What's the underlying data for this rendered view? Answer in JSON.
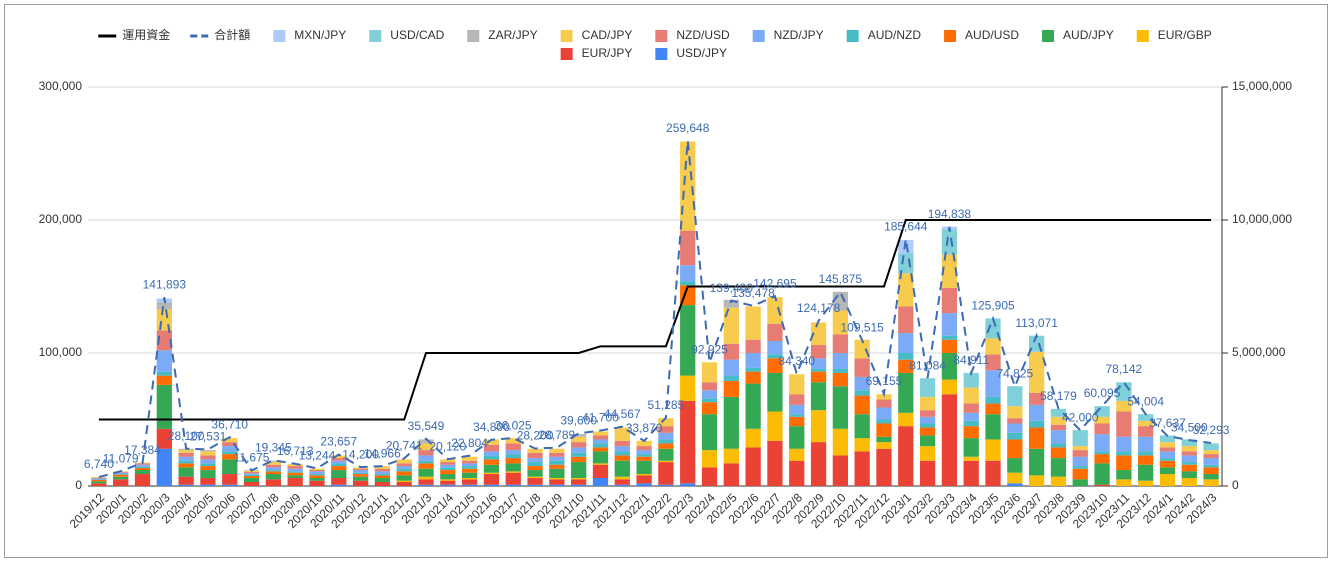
{
  "chart_data": {
    "type": "bar",
    "stacked": true,
    "grid": true,
    "legend": "top",
    "categories": [
      "2019/12",
      "2020/1",
      "2020/2",
      "2020/3",
      "2020/4",
      "2020/5",
      "2020/6",
      "2020/7",
      "2020/8",
      "2020/9",
      "2020/10",
      "2020/11",
      "2020/12",
      "2021/1",
      "2021/2",
      "2021/3",
      "2021/4",
      "2021/5",
      "2021/6",
      "2021/7",
      "2021/8",
      "2021/9",
      "2021/10",
      "2021/11",
      "2021/12",
      "2022/1",
      "2022/2",
      "2022/3",
      "2022/4",
      "2022/5",
      "2022/6",
      "2022/7",
      "2022/8",
      "2022/9",
      "2022/10",
      "2022/11",
      "2022/12",
      "2023/1",
      "2023/2",
      "2023/3",
      "2023/4",
      "2023/5",
      "2023/6",
      "2023/7",
      "2023/8",
      "2023/9",
      "2023/10",
      "2023/11",
      "2023/12",
      "2024/1",
      "2024/2",
      "2024/3"
    ],
    "ylim": [
      0,
      300000
    ],
    "yticks": [
      0,
      {
        "value": 100000,
        "label": "100,000"
      },
      {
        "value": 200000,
        "label": "200,000"
      },
      {
        "value": 300000,
        "label": "300,000"
      }
    ],
    "y2lim": [
      0,
      15000000
    ],
    "y2ticks": [
      0,
      {
        "value": 5000000,
        "label": "5,000,000"
      },
      {
        "value": 10000000,
        "label": "10,000,000"
      },
      {
        "value": 15000000,
        "label": "15,000,000"
      }
    ],
    "series": [
      {
        "name": "運用資金",
        "type": "line",
        "axis": "y2",
        "color": "#000000",
        "values": [
          2500000,
          2500000,
          2500000,
          2500000,
          2500000,
          2500000,
          2500000,
          2500000,
          2500000,
          2500000,
          2500000,
          2500000,
          2500000,
          2500000,
          2500000,
          5000000,
          5000000,
          5000000,
          5000000,
          5000000,
          5000000,
          5000000,
          5000000,
          5250000,
          5250000,
          5250000,
          5250000,
          7500000,
          7500000,
          7500000,
          7500000,
          7500000,
          7500000,
          7500000,
          7500000,
          7500000,
          7500000,
          10000000,
          10000000,
          10000000,
          10000000,
          10000000,
          10000000,
          10000000,
          10000000,
          10000000,
          10000000,
          10000000,
          10000000,
          10000000,
          10000000,
          10000000
        ]
      },
      {
        "name": "合計額",
        "type": "line",
        "dashed": true,
        "color": "#3d6bb3",
        "values": [
          6740,
          11079,
          17384,
          141893,
          28100,
          27531,
          36710,
          11675,
          19345,
          16713,
          13244,
          23657,
          14200,
          14966,
          20741,
          35549,
          20120,
          22804,
          34800,
          36025,
          28200,
          28789,
          39600,
          41700,
          44567,
          33870,
          51285,
          259648,
          92925,
          139400,
          135478,
          142695,
          84340,
          124178,
          145875,
          109515,
          69155,
          185644,
          81084,
          194838,
          84911,
          125905,
          74825,
          113071,
          58179,
          42000,
          60095,
          78142,
          54004,
          37637,
          34500,
          32293
        ],
        "value_labels": [
          "6,740",
          "11,079",
          "17,384",
          "141,893",
          "28,100",
          "27,531",
          "36,710",
          "11,675",
          "19,345",
          "16,713",
          "13,244",
          "23,657",
          "14,200",
          "14,966",
          "20,741",
          "35,549",
          "20,120",
          "22,804",
          "34,800",
          "36,025",
          "28,200",
          "28,789",
          "39,600",
          "41,700",
          "44,567",
          "33,870",
          "51,285",
          "259,648",
          "92,925",
          "139,400",
          "135,478",
          "142,695",
          "84,340",
          "124,178",
          "145,875",
          "109,515",
          "69,155",
          "185,644",
          "81,084",
          "194,838",
          "84,911",
          "125,905",
          "74,825",
          "113,071",
          "58,179",
          "42,000",
          "60,095",
          "78,142",
          "54,004",
          "37,637",
          "34,500",
          "32,293"
        ]
      },
      {
        "name": "MXN/JPY",
        "color": "#aecbfa",
        "values": [
          0,
          0,
          0,
          3000,
          0,
          0,
          0,
          0,
          0,
          0,
          0,
          0,
          0,
          0,
          0,
          0,
          0,
          0,
          0,
          0,
          0,
          0,
          0,
          0,
          0,
          0,
          0,
          0,
          0,
          0,
          0,
          0,
          0,
          0,
          0,
          0,
          0,
          10000,
          0,
          2000,
          0,
          0,
          0,
          0,
          0,
          0,
          0,
          0,
          0,
          0,
          0,
          0
        ]
      },
      {
        "name": "USD/CAD",
        "color": "#7fd0d8",
        "values": [
          0,
          0,
          0,
          0,
          0,
          0,
          0,
          0,
          0,
          0,
          0,
          0,
          0,
          0,
          0,
          0,
          0,
          0,
          0,
          0,
          0,
          0,
          0,
          0,
          0,
          0,
          0,
          0,
          0,
          0,
          0,
          0,
          0,
          0,
          0,
          0,
          0,
          15000,
          14000,
          19000,
          11000,
          15000,
          15000,
          12000,
          6000,
          12000,
          8000,
          14000,
          5000,
          5000,
          5000,
          5000
        ]
      },
      {
        "name": "ZAR/JPY",
        "color": "#b7b7b7",
        "values": [
          0,
          0,
          0,
          5000,
          1000,
          1000,
          0,
          500,
          1000,
          0,
          0,
          0,
          0,
          0,
          0,
          3000,
          0,
          0,
          0,
          0,
          0,
          0,
          2000,
          0,
          0,
          0,
          0,
          0,
          0,
          6000,
          0,
          0,
          0,
          0,
          14000,
          0,
          0,
          0,
          0,
          0,
          0,
          0,
          0,
          0,
          0,
          0,
          0,
          0,
          0,
          0,
          0,
          0
        ]
      },
      {
        "name": "CAD/JPY",
        "color": "#f7cb4d",
        "values": [
          540,
          500,
          500,
          16000,
          2000,
          3000,
          3000,
          1000,
          2000,
          1500,
          1000,
          2000,
          1000,
          2000,
          3000,
          5000,
          2000,
          3000,
          4000,
          4000,
          3000,
          3000,
          4000,
          3000,
          10000,
          4000,
          6000,
          67000,
          15000,
          27000,
          25000,
          20000,
          15000,
          17000,
          18000,
          14000,
          4000,
          25000,
          10000,
          25000,
          12000,
          12000,
          9000,
          31000,
          6000,
          3000,
          5000,
          8000,
          4000,
          4000,
          4000,
          3000
        ]
      },
      {
        "name": "NZD/USD",
        "color": "#e67c73",
        "values": [
          500,
          500,
          1000,
          15000,
          3000,
          3000,
          3000,
          1000,
          2000,
          2000,
          1000,
          2000,
          1000,
          2000,
          2000,
          4000,
          2000,
          2000,
          5000,
          5000,
          4000,
          3000,
          4000,
          3000,
          4000,
          3000,
          5000,
          26000,
          6000,
          12000,
          10000,
          13000,
          8000,
          10000,
          14000,
          14000,
          6000,
          20000,
          5000,
          19000,
          7000,
          12000,
          4000,
          9000,
          4000,
          5000,
          8000,
          19000,
          8000,
          3000,
          3000,
          3000
        ]
      },
      {
        "name": "NZD/JPY",
        "color": "#7baaf7",
        "values": [
          700,
          1000,
          1500,
          16000,
          3000,
          3000,
          4000,
          1000,
          2000,
          2000,
          2000,
          2000,
          2000,
          2000,
          2000,
          4000,
          2000,
          2000,
          3000,
          3000,
          3000,
          3000,
          4000,
          3000,
          4000,
          3000,
          5000,
          12000,
          6000,
          12000,
          11000,
          10000,
          7000,
          8000,
          12000,
          10000,
          9000,
          15000,
          5000,
          17000,
          6000,
          20000,
          7000,
          12000,
          10000,
          7000,
          13000,
          11000,
          11000,
          5000,
          5000,
          5000
        ]
      },
      {
        "name": "AUD/NZD",
        "color": "#46bdc6",
        "values": [
          500,
          500,
          1000,
          3000,
          2000,
          2000,
          2000,
          1000,
          1000,
          1000,
          1000,
          2000,
          1000,
          1000,
          2000,
          2000,
          2000,
          2000,
          3000,
          3000,
          3000,
          3000,
          3000,
          3000,
          3000,
          2000,
          3000,
          3000,
          3000,
          4000,
          3000,
          3000,
          2000,
          2000,
          3000,
          4000,
          3000,
          5000,
          3000,
          3000,
          4000,
          5000,
          5000,
          5000,
          3000,
          2000,
          2000,
          3000,
          3000,
          2000,
          2000,
          2000
        ]
      },
      {
        "name": "AUD/USD",
        "color": "#ff6d01",
        "values": [
          1000,
          1500,
          1500,
          7000,
          3000,
          3000,
          4000,
          1500,
          2000,
          2000,
          2000,
          3000,
          2000,
          2000,
          3000,
          4000,
          3000,
          3000,
          4000,
          4000,
          3000,
          3000,
          4000,
          3000,
          4000,
          3000,
          4000,
          15000,
          9000,
          12000,
          9000,
          11000,
          7000,
          8000,
          10000,
          14000,
          10000,
          10000,
          6000,
          10000,
          9000,
          8000,
          14000,
          16000,
          8000,
          8000,
          7000,
          11000,
          7000,
          5000,
          5000,
          5000
        ]
      },
      {
        "name": "AUD/JPY",
        "color": "#34a853",
        "values": [
          1500,
          2000,
          3000,
          33000,
          7000,
          6000,
          11000,
          3000,
          4000,
          2000,
          2000,
          6000,
          3000,
          3000,
          4000,
          6000,
          4000,
          4000,
          6000,
          6000,
          5000,
          7000,
          12000,
          9000,
          12000,
          10000,
          9000,
          53000,
          27000,
          39000,
          34000,
          29000,
          17000,
          21000,
          32000,
          18000,
          4000,
          30000,
          8000,
          20000,
          14000,
          19000,
          11000,
          20000,
          14000,
          5000,
          16000,
          7000,
          12000,
          5000,
          5000,
          4000
        ]
      },
      {
        "name": "EUR/GBP",
        "color": "#fbbc04",
        "values": [
          0,
          0,
          0,
          0,
          0,
          0,
          0,
          0,
          0,
          0,
          0,
          0,
          0,
          0,
          1000,
          2000,
          1000,
          1000,
          1000,
          1000,
          1000,
          1000,
          1000,
          1000,
          2000,
          1000,
          1000,
          19000,
          13000,
          11000,
          14000,
          22000,
          9000,
          24000,
          20000,
          10000,
          5000,
          10000,
          11000,
          11000,
          3000,
          16000,
          8000,
          8000,
          7000,
          0,
          0,
          5000,
          4000,
          9000,
          6000,
          5000
        ]
      },
      {
        "name": "EUR/JPY",
        "color": "#ea4335",
        "values": [
          2000,
          5000,
          9000,
          15000,
          6000,
          5000,
          8000,
          3000,
          5000,
          6000,
          4000,
          5000,
          4000,
          3000,
          3000,
          4000,
          3000,
          4000,
          8000,
          9000,
          5000,
          4000,
          4000,
          10000,
          4000,
          6000,
          17000,
          62000,
          14000,
          17000,
          29000,
          34000,
          19000,
          33000,
          23000,
          26000,
          28000,
          45000,
          19000,
          69000,
          19000,
          19000,
          0,
          0,
          0,
          0,
          1000,
          0,
          0,
          0,
          0,
          0
        ]
      },
      {
        "name": "USD/JPY",
        "color": "#4285f4",
        "values": [
          0,
          0,
          0,
          28000,
          1000,
          1000,
          1000,
          0,
          0,
          0,
          0,
          1000,
          0,
          0,
          0,
          1000,
          1000,
          1000,
          1000,
          1000,
          1000,
          1000,
          1000,
          6000,
          1000,
          2000,
          1000,
          2000,
          0,
          0,
          0,
          0,
          0,
          0,
          0,
          0,
          0,
          0,
          0,
          0,
          0,
          0,
          2000,
          0,
          0,
          0,
          0,
          0,
          0,
          0,
          0,
          0
        ]
      }
    ]
  }
}
